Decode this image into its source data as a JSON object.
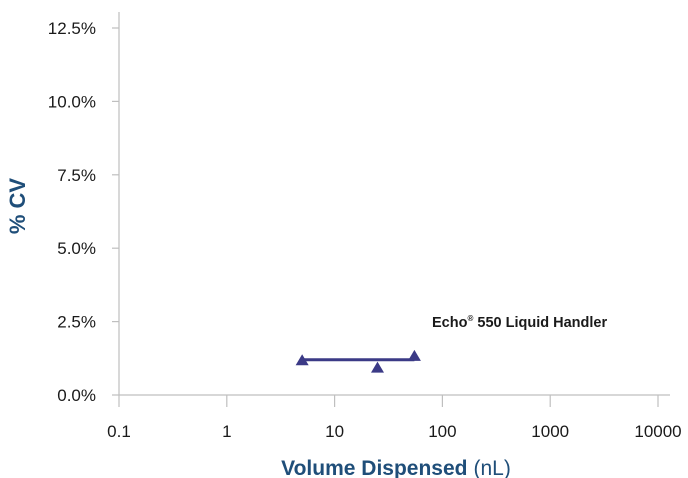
{
  "chart_data": {
    "type": "scatter",
    "xscale": "log",
    "xlim": [
      0.1,
      10000
    ],
    "ylim": [
      0,
      12.5
    ],
    "x_ticks": [
      {
        "value": 0.1,
        "label": "0.1"
      },
      {
        "value": 1,
        "label": "1"
      },
      {
        "value": 10,
        "label": "10"
      },
      {
        "value": 100,
        "label": "100"
      },
      {
        "value": 1000,
        "label": "1000"
      },
      {
        "value": 10000,
        "label": "10000"
      }
    ],
    "y_ticks": [
      {
        "value": 0,
        "label": "0.0%"
      },
      {
        "value": 2.5,
        "label": "2.5%"
      },
      {
        "value": 5,
        "label": "5.0%"
      },
      {
        "value": 7.5,
        "label": "7.5%"
      },
      {
        "value": 10,
        "label": "10.0%"
      },
      {
        "value": 12.5,
        "label": "12.5%"
      }
    ],
    "ylabel": "% CV",
    "xlabel": "Volume Dispensed",
    "xlabel_unit": "(nL)",
    "grid": false,
    "series": [
      {
        "name": "Echo® 550 Liquid Handler",
        "name_main": "Echo",
        "name_sup": "®",
        "name_rest": " 550 Liquid Handler",
        "color": "#3b3a86",
        "marker": "triangle",
        "x": [
          5,
          25,
          55
        ],
        "y": [
          1.2,
          0.95,
          1.35
        ],
        "mean_line": {
          "y": 1.2,
          "x_start": 5,
          "x_end": 55
        }
      }
    ]
  }
}
